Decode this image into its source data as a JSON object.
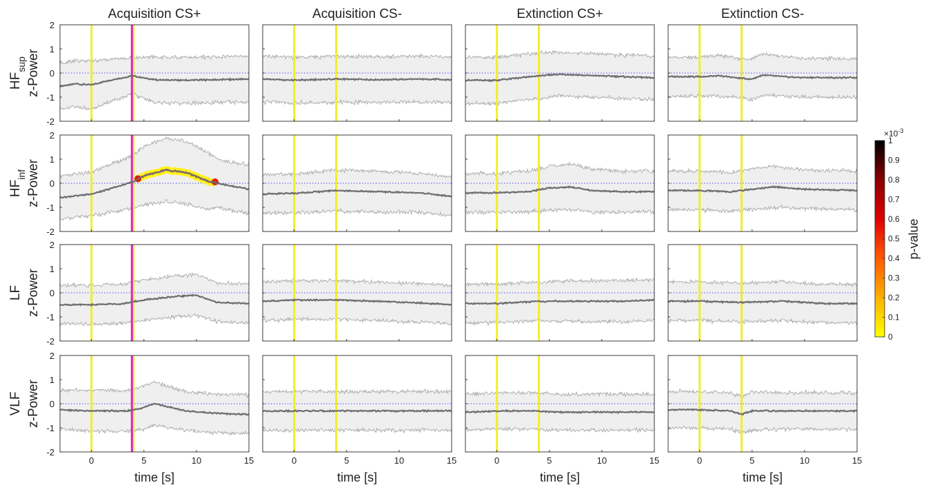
{
  "chart_data": {
    "type": "line",
    "columns": [
      "Acquisition CS+",
      "Acquisition CS-",
      "Extinction CS+",
      "Extinction CS-"
    ],
    "rows": [
      {
        "main": "HF",
        "sub": "sup",
        "ylabel": "z-Power"
      },
      {
        "main": "HF",
        "sub": "inf",
        "ylabel": "z-Power"
      },
      {
        "main": "LF",
        "sub": "",
        "ylabel": "z-Power"
      },
      {
        "main": "VLF",
        "sub": "",
        "ylabel": "z-Power"
      }
    ],
    "xlabel": "time [s]",
    "xlim": [
      -3,
      15
    ],
    "ylim": [
      -2,
      2
    ],
    "xticks": [
      0,
      5,
      10,
      15
    ],
    "yticks": [
      -2,
      -1,
      0,
      1,
      2
    ],
    "onset_markers": [
      0,
      4
    ],
    "us_marker_columns": [
      0
    ],
    "colors": {
      "mean": "#6e6e6e",
      "band_fill": "#efefef",
      "band_edge": "#a8a8a8",
      "onset": "#f2ee2a",
      "us": "#e020c8",
      "baseline": "#4a4aff",
      "highlight": "#fff21a"
    },
    "panels": [
      {
        "row": 0,
        "col": 0,
        "mean": [
          [
            -3,
            -0.55
          ],
          [
            -1.5,
            -0.45
          ],
          [
            0,
            -0.5
          ],
          [
            1.5,
            -0.32
          ],
          [
            3.9,
            -0.12
          ],
          [
            6,
            -0.28
          ],
          [
            9,
            -0.3
          ],
          [
            12,
            -0.28
          ],
          [
            15,
            -0.25
          ]
        ],
        "band": [
          0.95,
          0.95,
          1.0,
          0.9,
          0.75,
          0.95,
          0.95,
          0.95,
          0.95
        ]
      },
      {
        "row": 0,
        "col": 1,
        "mean": [
          [
            -3,
            -0.25
          ],
          [
            0,
            -0.3
          ],
          [
            4,
            -0.25
          ],
          [
            8,
            -0.28
          ],
          [
            12,
            -0.25
          ],
          [
            15,
            -0.28
          ]
        ],
        "band": [
          0.95,
          0.95,
          0.95,
          0.95,
          0.95,
          0.95
        ]
      },
      {
        "row": 0,
        "col": 2,
        "mean": [
          [
            -3,
            -0.3
          ],
          [
            0,
            -0.3
          ],
          [
            4,
            -0.12
          ],
          [
            6,
            -0.05
          ],
          [
            10,
            -0.12
          ],
          [
            15,
            -0.2
          ]
        ],
        "band": [
          0.95,
          0.95,
          0.95,
          0.9,
          0.9,
          0.9
        ]
      },
      {
        "row": 0,
        "col": 3,
        "mean": [
          [
            -3,
            -0.15
          ],
          [
            0,
            -0.15
          ],
          [
            2,
            -0.12
          ],
          [
            4,
            -0.22
          ],
          [
            5,
            -0.25
          ],
          [
            6,
            -0.08
          ],
          [
            9,
            -0.18
          ],
          [
            15,
            -0.2
          ]
        ],
        "band": [
          0.8,
          0.8,
          0.85,
          0.8,
          0.85,
          0.85,
          0.8,
          0.8
        ]
      },
      {
        "row": 1,
        "col": 0,
        "mean": [
          [
            -3,
            -0.6
          ],
          [
            0,
            -0.45
          ],
          [
            2,
            -0.2
          ],
          [
            3.9,
            0.05
          ],
          [
            5,
            0.3
          ],
          [
            7,
            0.55
          ],
          [
            9,
            0.45
          ],
          [
            11,
            0.1
          ],
          [
            12,
            0.0
          ],
          [
            15,
            -0.25
          ]
        ],
        "band": [
          0.9,
          0.9,
          1.0,
          1.1,
          1.2,
          1.3,
          1.3,
          1.2,
          1.0,
          1.0
        ],
        "significant": {
          "from": 4.4,
          "to": 11.8
        }
      },
      {
        "row": 1,
        "col": 1,
        "mean": [
          [
            -3,
            -0.45
          ],
          [
            0,
            -0.42
          ],
          [
            4,
            -0.3
          ],
          [
            8,
            -0.35
          ],
          [
            12,
            -0.4
          ],
          [
            15,
            -0.55
          ]
        ],
        "band": [
          0.8,
          0.8,
          0.85,
          0.85,
          0.8,
          0.8
        ]
      },
      {
        "row": 1,
        "col": 2,
        "mean": [
          [
            -3,
            -0.4
          ],
          [
            0,
            -0.4
          ],
          [
            3,
            -0.35
          ],
          [
            5,
            -0.2
          ],
          [
            7,
            -0.15
          ],
          [
            9,
            -0.3
          ],
          [
            12,
            -0.35
          ],
          [
            15,
            -0.35
          ]
        ],
        "band": [
          0.8,
          0.8,
          0.85,
          0.9,
          0.95,
          0.9,
          0.85,
          0.85
        ]
      },
      {
        "row": 1,
        "col": 3,
        "mean": [
          [
            -3,
            -0.3
          ],
          [
            0,
            -0.3
          ],
          [
            3,
            -0.35
          ],
          [
            5,
            -0.25
          ],
          [
            7,
            -0.15
          ],
          [
            10,
            -0.25
          ],
          [
            15,
            -0.3
          ]
        ],
        "band": [
          0.8,
          0.8,
          0.8,
          0.85,
          0.85,
          0.8,
          0.8
        ]
      },
      {
        "row": 2,
        "col": 0,
        "mean": [
          [
            -3,
            -0.5
          ],
          [
            0,
            -0.5
          ],
          [
            3,
            -0.45
          ],
          [
            5,
            -0.3
          ],
          [
            8,
            -0.15
          ],
          [
            10,
            -0.1
          ],
          [
            12,
            -0.4
          ],
          [
            15,
            -0.45
          ]
        ],
        "band": [
          0.8,
          0.8,
          0.8,
          0.85,
          0.85,
          0.85,
          0.8,
          0.8
        ]
      },
      {
        "row": 2,
        "col": 1,
        "mean": [
          [
            -3,
            -0.35
          ],
          [
            0,
            -0.3
          ],
          [
            4,
            -0.3
          ],
          [
            8,
            -0.35
          ],
          [
            12,
            -0.42
          ],
          [
            15,
            -0.5
          ]
        ],
        "band": [
          0.8,
          0.8,
          0.8,
          0.8,
          0.8,
          0.8
        ]
      },
      {
        "row": 2,
        "col": 2,
        "mean": [
          [
            -3,
            -0.45
          ],
          [
            0,
            -0.45
          ],
          [
            4,
            -0.35
          ],
          [
            8,
            -0.35
          ],
          [
            12,
            -0.35
          ],
          [
            15,
            -0.3
          ]
        ],
        "band": [
          0.8,
          0.8,
          0.8,
          0.85,
          0.85,
          0.85
        ]
      },
      {
        "row": 2,
        "col": 3,
        "mean": [
          [
            -3,
            -0.35
          ],
          [
            0,
            -0.35
          ],
          [
            4,
            -0.4
          ],
          [
            8,
            -0.35
          ],
          [
            12,
            -0.45
          ],
          [
            15,
            -0.45
          ]
        ],
        "band": [
          0.8,
          0.8,
          0.8,
          0.8,
          0.8,
          0.8
        ]
      },
      {
        "row": 3,
        "col": 0,
        "mean": [
          [
            -3,
            -0.25
          ],
          [
            0,
            -0.3
          ],
          [
            3,
            -0.3
          ],
          [
            3.9,
            -0.28
          ],
          [
            5,
            -0.15
          ],
          [
            6,
            0.0
          ],
          [
            7,
            -0.1
          ],
          [
            9,
            -0.3
          ],
          [
            12,
            -0.4
          ],
          [
            15,
            -0.45
          ]
        ],
        "band": [
          0.8,
          0.85,
          0.85,
          0.85,
          0.9,
          0.9,
          0.85,
          0.8,
          0.8,
          0.8
        ]
      },
      {
        "row": 3,
        "col": 1,
        "mean": [
          [
            -3,
            -0.3
          ],
          [
            0,
            -0.3
          ],
          [
            4,
            -0.3
          ],
          [
            8,
            -0.3
          ],
          [
            12,
            -0.3
          ],
          [
            15,
            -0.3
          ]
        ],
        "band": [
          0.8,
          0.8,
          0.8,
          0.8,
          0.8,
          0.8
        ]
      },
      {
        "row": 3,
        "col": 2,
        "mean": [
          [
            -3,
            -0.35
          ],
          [
            0,
            -0.3
          ],
          [
            4,
            -0.3
          ],
          [
            6,
            -0.35
          ],
          [
            9,
            -0.35
          ],
          [
            15,
            -0.35
          ]
        ],
        "band": [
          0.75,
          0.75,
          0.75,
          0.75,
          0.75,
          0.75
        ]
      },
      {
        "row": 3,
        "col": 3,
        "mean": [
          [
            -3,
            -0.25
          ],
          [
            0,
            -0.25
          ],
          [
            3,
            -0.3
          ],
          [
            4,
            -0.45
          ],
          [
            5,
            -0.3
          ],
          [
            8,
            -0.3
          ],
          [
            12,
            -0.3
          ],
          [
            15,
            -0.3
          ]
        ],
        "band": [
          0.75,
          0.75,
          0.75,
          0.75,
          0.8,
          0.75,
          0.75,
          0.75
        ]
      }
    ],
    "colorbar": {
      "label": "p-value",
      "exponent": "×10",
      "exponent_power": "-3",
      "ticks": [
        "0",
        "0.1",
        "0.2",
        "0.3",
        "0.4",
        "0.5",
        "0.6",
        "0.7",
        "0.8",
        "0.9",
        "1"
      ],
      "stops": [
        "#ffff00",
        "#ffb000",
        "#ff5a00",
        "#e00000",
        "#8a0000",
        "#000000"
      ]
    }
  }
}
